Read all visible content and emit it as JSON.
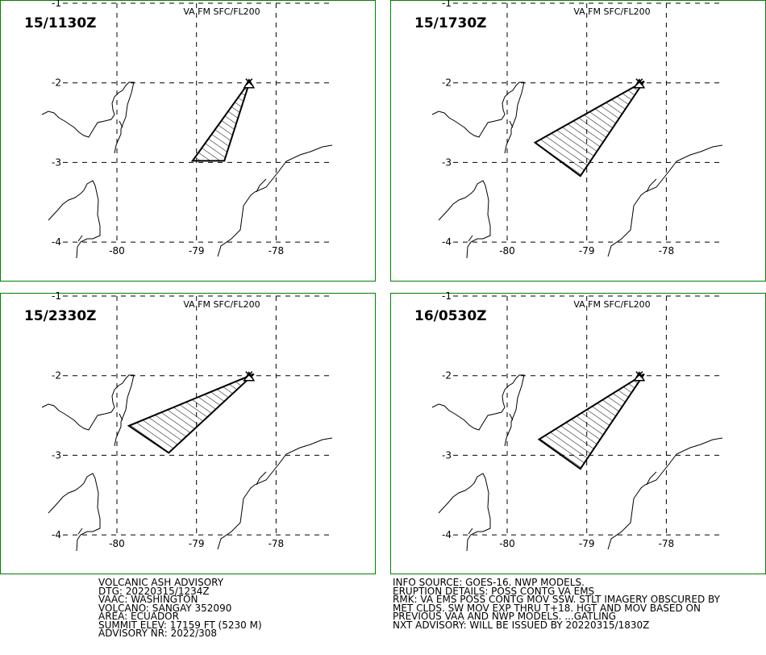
{
  "panels": [
    {
      "time": "15/1130Z",
      "level": "VA FM SFC/FL200",
      "ash_polygon": [
        [
          -78.33,
          -1.98
        ],
        [
          -78.65,
          -2.98
        ],
        [
          -79.05,
          -2.98
        ],
        [
          -78.33,
          -1.98
        ]
      ]
    },
    {
      "time": "15/1730Z",
      "level": "VA FM SFC/FL200",
      "ash_polygon": [
        [
          -78.28,
          -1.98
        ],
        [
          -79.08,
          -3.17
        ],
        [
          -79.65,
          -2.75
        ],
        [
          -78.28,
          -1.98
        ]
      ]
    },
    {
      "time": "15/2330Z",
      "level": "VA FM SFC/FL200",
      "ash_polygon": [
        [
          -78.28,
          -1.98
        ],
        [
          -79.35,
          -2.97
        ],
        [
          -79.85,
          -2.63
        ],
        [
          -78.28,
          -1.98
        ]
      ]
    },
    {
      "time": "16/0530Z",
      "level": "VA FM SFC/FL200",
      "ash_polygon": [
        [
          -78.28,
          -1.98
        ],
        [
          -79.08,
          -3.17
        ],
        [
          -79.6,
          -2.8
        ],
        [
          -78.28,
          -1.98
        ]
      ]
    }
  ],
  "map": {
    "lon_ticks": [
      -80,
      -79,
      -78
    ],
    "lat_ticks": [
      -1,
      -2,
      -3,
      -4
    ],
    "lon_labels": [
      "-80",
      "-79",
      "-78"
    ],
    "lat_labels": [
      "-1",
      "-2",
      "-3",
      "-4"
    ],
    "volcano": {
      "name": "SANGAY",
      "lon": -78.34,
      "lat": -2.0
    },
    "frame_color": "#008000",
    "ash_color": "#000000"
  },
  "advisory_left": [
    "VOLCANIC ASH ADVISORY",
    "DTG: 20220315/1234Z",
    "VAAC: WASHINGTON",
    "VOLCANO: SANGAY 352090",
    "AREA: ECUADOR",
    "SUMMIT ELEV: 17159 FT (5230 M)",
    "ADVISORY NR: 2022/308"
  ],
  "advisory_right": [
    "INFO SOURCE: GOES-16. NWP MODELS.",
    "ERUPTION DETAILS: POSS CONTG VA EMS",
    "RMK: VA EMS POSS CONTG MOV SSW. STLT IMAGERY OBSCURED BY",
    "MET CLDS. SW MOV EXP THRU T+18. HGT AND MOV BASED ON",
    "PREVIOUS VAA AND NWP MODELS. ...GATLING",
    "NXT ADVISORY: WILL BE ISSUED BY 20220315/1830Z"
  ]
}
